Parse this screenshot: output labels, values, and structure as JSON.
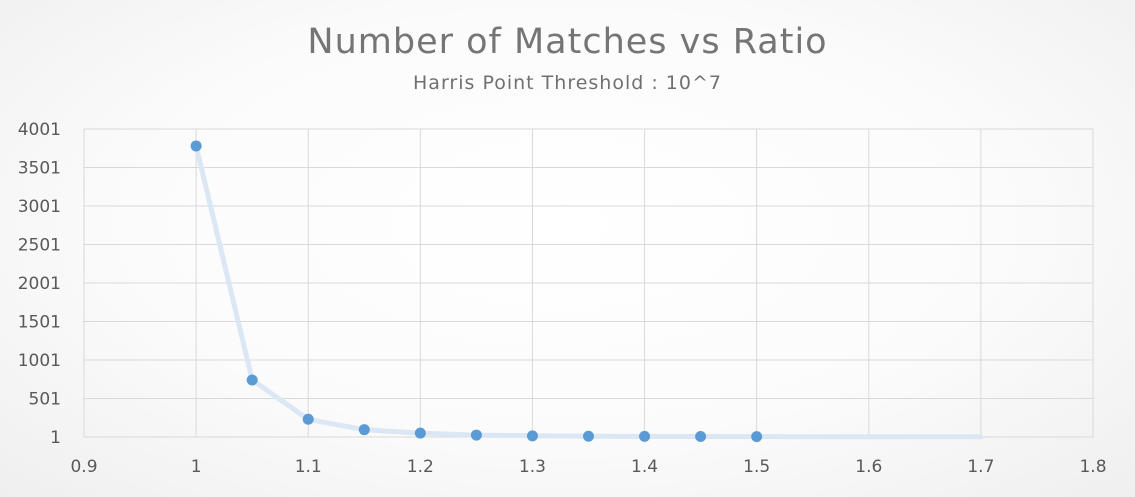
{
  "chart_data": {
    "type": "line",
    "title": "Number of Matches vs Ratio",
    "subtitle": "Harris Point Threshold : 10^7",
    "xlabel": "",
    "ylabel": "",
    "xlim": [
      0.9,
      1.8
    ],
    "ylim": [
      1,
      4001
    ],
    "x_ticks": [
      "0.9",
      "1",
      "1.1",
      "1.2",
      "1.3",
      "1.4",
      "1.5",
      "1.6",
      "1.7",
      "1.8"
    ],
    "y_ticks": [
      "1",
      "501",
      "1001",
      "1501",
      "2001",
      "2501",
      "3001",
      "3501",
      "4001"
    ],
    "grid": true,
    "series": [
      {
        "x": [
          1.0,
          1.05,
          1.1,
          1.15,
          1.2,
          1.25,
          1.3,
          1.35,
          1.4,
          1.45,
          1.5,
          1.55,
          1.6,
          1.65,
          1.7
        ],
        "y": [
          3781,
          741,
          231,
          96,
          51,
          26,
          16,
          11,
          9,
          7,
          6,
          5,
          4,
          3,
          3
        ],
        "markers": [
          true,
          true,
          true,
          true,
          true,
          true,
          true,
          true,
          true,
          true,
          true,
          false,
          false,
          false,
          false
        ]
      }
    ],
    "colors": {
      "marker": "#5b9bd5",
      "line": "#dbe7f5",
      "grid": "#d9d9d9"
    }
  }
}
